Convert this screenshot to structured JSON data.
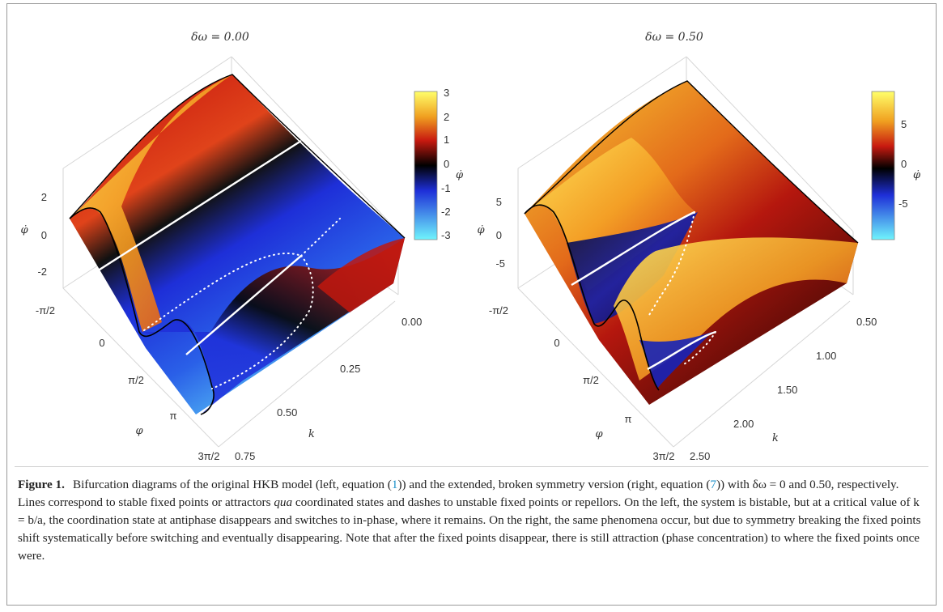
{
  "figure": {
    "panels": [
      {
        "title": "δω = 0.00",
        "ytick_labels": [
          "2",
          "0",
          "-2"
        ],
        "yaxis_label": "φ̇",
        "phi_tick_labels": [
          "-π/2",
          "0",
          "π/2",
          "π",
          "3π/2"
        ],
        "phi_axis_label": "φ",
        "k_tick_labels": [
          "0.00",
          "0.25",
          "0.50",
          "0.75"
        ],
        "k_axis_label": "k",
        "colorbar_ticks": [
          "3",
          "2",
          "1",
          "0",
          "-1",
          "-2",
          "-3"
        ],
        "colorbar_label": "φ̇"
      },
      {
        "title": "δω = 0.50",
        "ytick_labels": [
          "5",
          "0",
          "-5"
        ],
        "yaxis_label": "φ̇",
        "phi_tick_labels": [
          "-π/2",
          "0",
          "π/2",
          "π",
          "3π/2"
        ],
        "phi_axis_label": "φ",
        "k_tick_labels": [
          "0.50",
          "1.00",
          "1.50",
          "2.00",
          "2.50"
        ],
        "k_axis_label": "k",
        "colorbar_ticks": [
          "5",
          "0",
          "-5"
        ],
        "colorbar_label": "φ̇"
      }
    ],
    "colors": {
      "bright": "#ffff6a",
      "warm": "#f0a020",
      "red": "#c81a10",
      "dark": "#000000",
      "blue": "#1e2fd8",
      "cyan": "#6ff4fc"
    }
  },
  "caption": {
    "label": "Figure 1.",
    "seg1": "Bifurcation diagrams of the original HKB model (left, equation (",
    "ref1": "1",
    "seg2": ")) and the extended, broken symmetry version (right, equation (",
    "ref2": "7",
    "seg3": ")) with δω = 0 and 0.50, respectively. Lines correspond to stable fixed points or attractors ",
    "qua": "qua",
    "seg4": " coordinated states and dashes to unstable fixed points or repellors. On the left, the system is bistable, but at a critical value of k = b/a, the coordination state at antiphase disappears and switches to in-phase, where it remains. On the right, the same phenomena occur, but due to symmetry breaking the fixed points shift systematically before switching and eventually disappearing. Note that after the fixed points disappear, there is still attraction (phase concentration) to where the fixed points once were."
  }
}
